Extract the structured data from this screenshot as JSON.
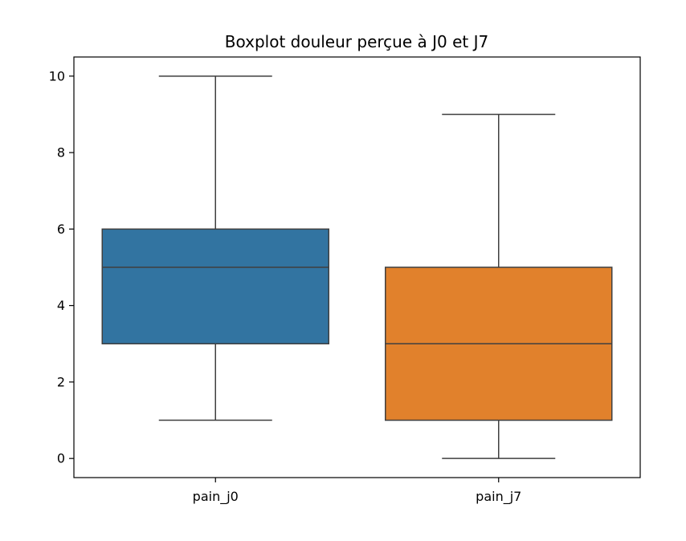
{
  "chart_data": {
    "type": "boxplot",
    "title": "Boxplot douleur perçue à J0 et J7",
    "xlabel": "",
    "ylabel": "",
    "ylim": [
      -0.5,
      10.5
    ],
    "yticks": [
      0,
      2,
      4,
      6,
      8,
      10
    ],
    "ytick_labels": [
      "0",
      "2",
      "4",
      "6",
      "8",
      "10"
    ],
    "grid": false,
    "legend": "none",
    "categories": [
      "pain_j0",
      "pain_j7"
    ],
    "boxes": [
      {
        "category": "pain_j0",
        "whisker_low": 1,
        "q1": 3,
        "median": 5,
        "q3": 6,
        "whisker_high": 10,
        "color": "#3274a1"
      },
      {
        "category": "pain_j7",
        "whisker_low": 0,
        "q1": 1,
        "median": 3,
        "q3": 5,
        "whisker_high": 9,
        "color": "#e1812c"
      }
    ],
    "line_color": "#3f3f3f"
  }
}
